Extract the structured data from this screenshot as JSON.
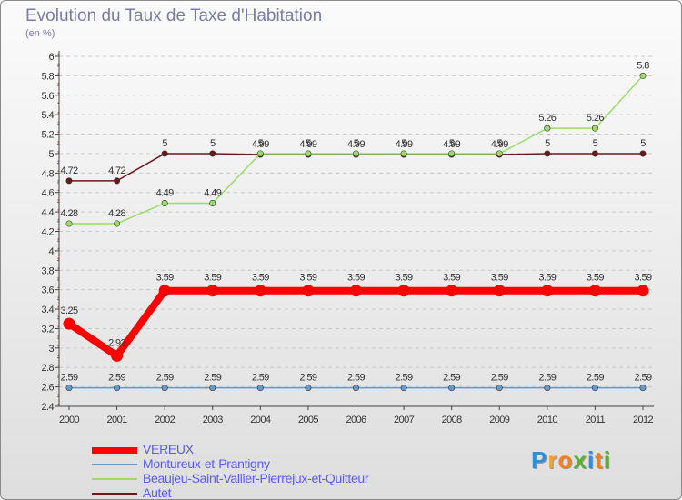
{
  "chart_data": {
    "type": "line",
    "title": "Evolution du Taux de Taxe d'Habitation",
    "subtitle": "(en %)",
    "xlabel": "",
    "ylabel": "(en %)",
    "x": [
      "2000",
      "2001",
      "2002",
      "2003",
      "2004",
      "2005",
      "2006",
      "2007",
      "2008",
      "2009",
      "2010",
      "2011",
      "2012"
    ],
    "ylim": [
      2.4,
      6
    ],
    "yticks": [
      "2.4",
      "2.6",
      "2.8",
      "3",
      "3.2",
      "3.4",
      "3.6",
      "3.8",
      "4",
      "4.2",
      "4.4",
      "4.6",
      "4.8",
      "5",
      "5.2",
      "5.4",
      "5.6",
      "5.8",
      "6"
    ],
    "grid": "horizontal dashed",
    "legend_position": "bottom-left",
    "series": [
      {
        "name": "Autet",
        "color": "#6b1818",
        "values": [
          4.72,
          4.72,
          5,
          5,
          4.99,
          4.99,
          4.99,
          4.99,
          4.99,
          4.99,
          5,
          5,
          5
        ],
        "labels": [
          "4.72",
          "4.72",
          "5",
          "5",
          "4.99",
          "4.99",
          "4.99",
          "4.99",
          "4.99",
          "4.99",
          "5",
          "5",
          "5"
        ]
      },
      {
        "name": "Beaujeu-Saint-Vallier-Pierrejux-et-Quitteur",
        "color": "#99dd66",
        "values": [
          4.28,
          4.28,
          4.49,
          4.49,
          5,
          5,
          5,
          5,
          5,
          5,
          5.26,
          5.26,
          5.8
        ],
        "labels": [
          "4.28",
          "4.28",
          "4.49",
          "4.49",
          "5",
          "5",
          "5",
          "5",
          "5",
          "5",
          "5.26",
          "5.26",
          "5.8"
        ]
      },
      {
        "name": "Montureux-et-Prantigny",
        "color": "#6699cc",
        "values": [
          2.59,
          2.59,
          2.59,
          2.59,
          2.59,
          2.59,
          2.59,
          2.59,
          2.59,
          2.59,
          2.59,
          2.59,
          2.59
        ],
        "labels": [
          "2.59",
          "2.59",
          "2.59",
          "2.59",
          "2.59",
          "2.59",
          "2.59",
          "2.59",
          "2.59",
          "2.59",
          "2.59",
          "2.59",
          "2.59"
        ]
      },
      {
        "name": "VEREUX",
        "color": "#ff0000",
        "values": [
          3.25,
          2.92,
          3.59,
          3.59,
          3.59,
          3.59,
          3.59,
          3.59,
          3.59,
          3.59,
          3.59,
          3.59,
          3.59
        ],
        "labels": [
          "3.25",
          "2.92",
          "3.59",
          "3.59",
          "3.59",
          "3.59",
          "3.59",
          "3.59",
          "3.59",
          "3.59",
          "3.59",
          "3.59",
          "3.59"
        ]
      }
    ]
  },
  "legend": [
    {
      "name": "VEREUX",
      "color": "#ff0000"
    },
    {
      "name": "Montureux-et-Prantigny",
      "color": "#6699cc"
    },
    {
      "name": "Beaujeu-Saint-Vallier-Pierrejux-et-Quitteur",
      "color": "#99dd66"
    },
    {
      "name": "Autet",
      "color": "#6b1818"
    }
  ],
  "logo": {
    "letters": [
      "P",
      "r",
      "o",
      "x",
      "i",
      "t",
      "i"
    ],
    "colors": [
      "#2e8fd8",
      "#f0a030",
      "#f08020",
      "#58b030",
      "#2e8fd8",
      "#f08020",
      "#58b030"
    ]
  }
}
